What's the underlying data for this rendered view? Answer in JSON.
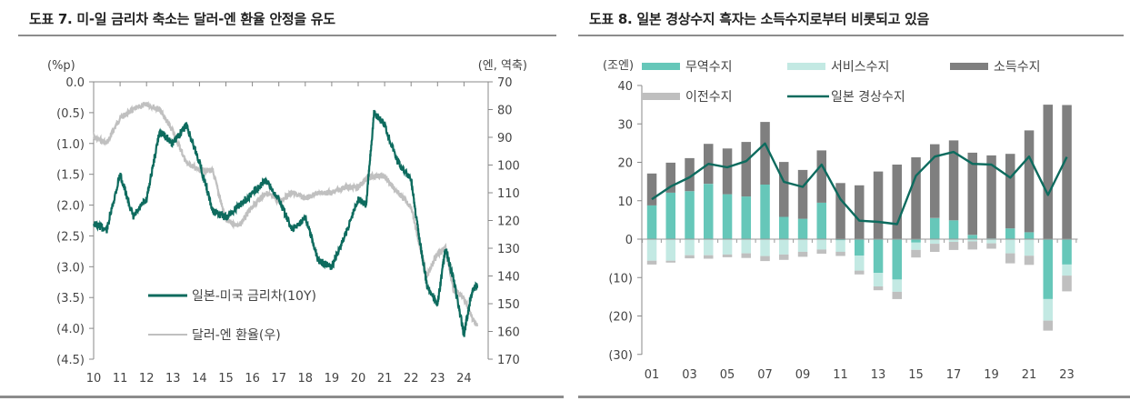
{
  "left": {
    "title": "도표 7. 미-일 금리차 축소는 달러-엔 환율 안정을 유도",
    "left_unit": "(%p)",
    "right_unit": "(엔, 역축)",
    "legend": [
      {
        "label": "일본-미국 금리차(10Y)",
        "color": "#0d6b5e"
      },
      {
        "label": "달러-엔 환율(우)",
        "color": "#c0c0c0"
      }
    ]
  },
  "right": {
    "title": "도표 8. 일본 경상수지 흑자는 소득수지로부터 비롯되고 있음",
    "unit": "(조엔)",
    "legend": [
      {
        "label": "무역수지",
        "color": "#66c7b9"
      },
      {
        "label": "서비스수지",
        "color": "#c3e9e3"
      },
      {
        "label": "소득수지",
        "color": "#7f7f7f"
      },
      {
        "label": "이전수지",
        "color": "#bfbfbf"
      },
      {
        "label": "일본 경상수지",
        "color": "#0d6b5e"
      }
    ]
  },
  "chart_data": [
    {
      "type": "line",
      "title": "도표 7. 미-일 금리차 축소는 달러-엔 환율 안정을 유도",
      "xlabel": "",
      "ylabel": "(%p)",
      "y2label": "(엔, 역축)",
      "x_ticks": [
        "10",
        "11",
        "12",
        "13",
        "14",
        "15",
        "16",
        "17",
        "18",
        "19",
        "20",
        "21",
        "22",
        "23",
        "24"
      ],
      "y_ticks": [
        "0.0",
        "(0.5)",
        "(1.0)",
        "(1.5)",
        "(2.0)",
        "(2.5)",
        "(3.0)",
        "(3.5)",
        "(4.0)",
        "(4.5)"
      ],
      "y2_ticks": [
        "70",
        "80",
        "90",
        "100",
        "110",
        "120",
        "130",
        "140",
        "150",
        "160",
        "170"
      ],
      "ylim": [
        -4.5,
        0.0
      ],
      "y2lim": [
        170,
        70
      ],
      "y2_inverted": true,
      "grid": false,
      "legend_position": "lower-left inside",
      "x": [
        2010.0,
        2010.5,
        2011.0,
        2011.5,
        2012.0,
        2012.5,
        2013.0,
        2013.5,
        2014.0,
        2014.5,
        2015.0,
        2015.5,
        2016.0,
        2016.5,
        2017.0,
        2017.5,
        2018.0,
        2018.5,
        2019.0,
        2019.5,
        2020.0,
        2020.3,
        2020.6,
        2021.0,
        2021.5,
        2022.0,
        2022.3,
        2022.6,
        2023.0,
        2023.3,
        2023.6,
        2024.0,
        2024.3,
        2024.5
      ],
      "series": [
        {
          "name": "일본-미국 금리차(10Y)",
          "axis": "left",
          "values": [
            -2.3,
            -2.4,
            -1.5,
            -2.2,
            -1.9,
            -0.8,
            -1.0,
            -0.7,
            -1.3,
            -2.1,
            -2.2,
            -2.0,
            -1.8,
            -1.6,
            -1.9,
            -2.4,
            -2.2,
            -2.9,
            -3.0,
            -2.5,
            -1.9,
            -2.0,
            -0.5,
            -0.7,
            -1.3,
            -1.6,
            -2.5,
            -3.3,
            -3.6,
            -2.7,
            -3.2,
            -4.1,
            -3.4,
            -3.3
          ]
        },
        {
          "name": "달러-엔 환율(우)",
          "axis": "right",
          "values": [
            90,
            92,
            83,
            80,
            78,
            80,
            88,
            99,
            102,
            102,
            120,
            122,
            115,
            110,
            113,
            110,
            112,
            110,
            110,
            108,
            108,
            105,
            104,
            104,
            110,
            115,
            128,
            140,
            132,
            130,
            145,
            148,
            155,
            158
          ]
        }
      ]
    },
    {
      "type": "bar",
      "stacked": true,
      "title": "도표 8. 일본 경상수지 흑자는 소득수지로부터 비롯되고 있음",
      "xlabel": "",
      "ylabel": "(조엔)",
      "ylim": [
        -30,
        40
      ],
      "y_ticks": [
        "40",
        "30",
        "20",
        "10",
        "0",
        "(10)",
        "(20)",
        "(30)"
      ],
      "x_tick_labels": [
        "01",
        "03",
        "05",
        "07",
        "09",
        "11",
        "13",
        "15",
        "17",
        "19",
        "21",
        "23"
      ],
      "grid": false,
      "legend_position": "top",
      "categories": [
        "01",
        "02",
        "03",
        "04",
        "05",
        "06",
        "07",
        "08",
        "09",
        "10",
        "11",
        "12",
        "13",
        "14",
        "15",
        "16",
        "17",
        "18",
        "19",
        "20",
        "21",
        "22",
        "23"
      ],
      "series": [
        {
          "name": "무역수지",
          "type": "bar",
          "values": [
            8.8,
            12.1,
            12.5,
            14.4,
            11.7,
            11.1,
            14.2,
            5.8,
            5.3,
            9.5,
            -0.3,
            -4.3,
            -8.8,
            -10.5,
            -0.9,
            5.5,
            4.9,
            1.1,
            0.2,
            2.8,
            1.8,
            -15.6,
            -6.6
          ]
        },
        {
          "name": "서비스수지",
          "type": "bar",
          "values": [
            -5.6,
            -5.6,
            -4.2,
            -4.2,
            -4.0,
            -3.7,
            -4.4,
            -4.0,
            -3.3,
            -2.7,
            -3.0,
            -3.9,
            -3.5,
            -3.2,
            -1.9,
            -1.2,
            -0.7,
            -0.6,
            -1.1,
            -3.7,
            -4.3,
            -5.6,
            -2.9
          ]
        },
        {
          "name": "소득수지",
          "type": "bar",
          "values": [
            8.3,
            7.8,
            8.6,
            10.4,
            11.9,
            14.2,
            16.3,
            14.3,
            12.7,
            13.6,
            14.6,
            14.0,
            17.6,
            19.4,
            21.3,
            19.2,
            20.8,
            21.4,
            21.6,
            19.4,
            26.5,
            35.0,
            34.9
          ]
        },
        {
          "name": "이전수지",
          "type": "bar",
          "values": [
            -1.0,
            -0.5,
            -0.8,
            -0.9,
            -0.7,
            -1.2,
            -1.3,
            -1.4,
            -1.3,
            -1.1,
            -1.1,
            -1.0,
            -1.0,
            -1.9,
            -2.0,
            -2.1,
            -2.1,
            -2.1,
            -1.4,
            -2.6,
            -2.4,
            -2.6,
            -4.1
          ]
        },
        {
          "name": "일본 경상수지",
          "type": "line",
          "values": [
            10.4,
            13.7,
            16.1,
            19.6,
            18.7,
            20.3,
            24.9,
            14.9,
            13.6,
            19.4,
            10.4,
            4.8,
            4.5,
            3.9,
            16.5,
            21.5,
            22.7,
            19.6,
            19.4,
            16.0,
            21.5,
            11.5,
            21.4
          ]
        }
      ]
    }
  ]
}
